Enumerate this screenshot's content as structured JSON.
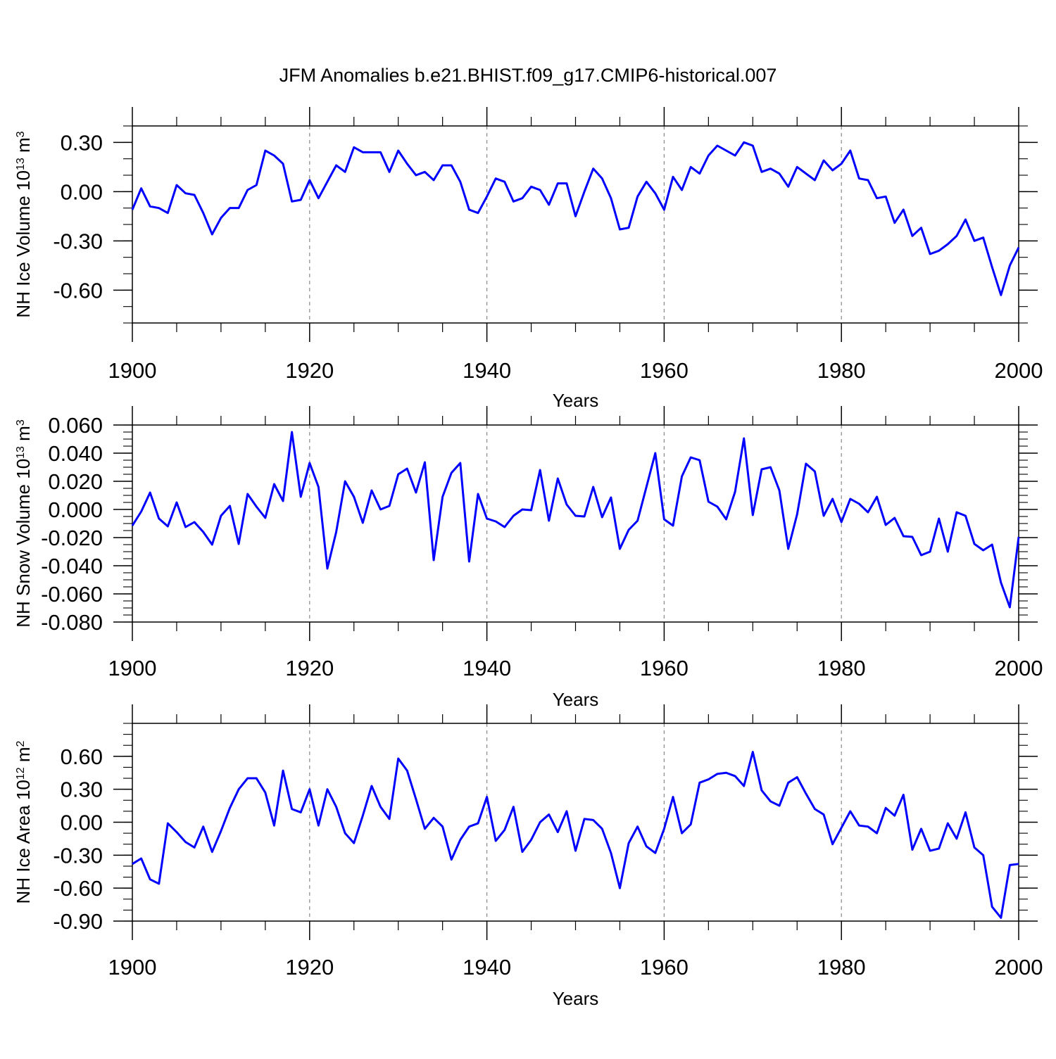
{
  "title": "JFM Anomalies b.e21.BHIST.f09_g17.CMIP6-historical.007",
  "line_color": "#0000ff",
  "grid_color": "#888888",
  "chart_data": [
    {
      "type": "line",
      "name": "ice-volume",
      "ylabel": "NH Ice Volume 10",
      "ylabel_exp": "13",
      "ylabel_unit": " m",
      "ylabel_unit_exp": "3",
      "xlabel": "Years",
      "xlim": [
        1900,
        2000
      ],
      "ylim": [
        -0.8,
        0.4
      ],
      "yticks": [
        0.3,
        0.0,
        -0.3,
        -0.6
      ],
      "yticklabels": [
        "0.30",
        "0.00",
        "-0.30",
        "-0.60"
      ],
      "yminor": 0.1,
      "xticks": [
        1900,
        1920,
        1940,
        1960,
        1980,
        2000
      ],
      "xticklabels": [
        "1900",
        "1920",
        "1940",
        "1960",
        "1980",
        "2000"
      ],
      "x_start": 1900,
      "values": [
        -0.11,
        0.02,
        -0.09,
        -0.1,
        -0.13,
        0.04,
        -0.01,
        -0.02,
        -0.13,
        -0.26,
        -0.16,
        -0.1,
        -0.1,
        0.01,
        0.04,
        0.25,
        0.22,
        0.17,
        -0.06,
        -0.05,
        0.07,
        -0.04,
        0.06,
        0.16,
        0.12,
        0.27,
        0.24,
        0.24,
        0.24,
        0.12,
        0.25,
        0.17,
        0.1,
        0.12,
        0.07,
        0.16,
        0.16,
        0.06,
        -0.11,
        -0.13,
        -0.03,
        0.08,
        0.06,
        -0.06,
        -0.04,
        0.03,
        0.01,
        -0.08,
        0.05,
        0.05,
        -0.15,
        0.0,
        0.14,
        0.08,
        -0.04,
        -0.23,
        -0.22,
        -0.03,
        0.06,
        -0.01,
        -0.11,
        0.09,
        0.01,
        0.15,
        0.11,
        0.22,
        0.28,
        0.25,
        0.22,
        0.3,
        0.28,
        0.12,
        0.14,
        0.11,
        0.03,
        0.15,
        0.11,
        0.07,
        0.19,
        0.13,
        0.17,
        0.25,
        0.08,
        0.07,
        -0.04,
        -0.03,
        -0.19,
        -0.11,
        -0.27,
        -0.22,
        -0.38,
        -0.36,
        -0.32,
        -0.27,
        -0.17,
        -0.3,
        -0.28,
        -0.46,
        -0.63,
        -0.45,
        -0.34
      ]
    },
    {
      "type": "line",
      "name": "snow-volume",
      "ylabel": "NH Snow Volume 10",
      "ylabel_exp": "13",
      "ylabel_unit": " m",
      "ylabel_unit_exp": "3",
      "xlabel": "Years",
      "xlim": [
        1900,
        2000
      ],
      "ylim": [
        -0.08,
        0.06
      ],
      "yticks": [
        0.06,
        0.04,
        0.02,
        0.0,
        -0.02,
        -0.04,
        -0.06,
        -0.08
      ],
      "yticklabels": [
        "0.060",
        "0.040",
        "0.020",
        "0.000",
        "-0.020",
        "-0.040",
        "-0.060",
        "-0.080"
      ],
      "yminor": 0.005,
      "xticks": [
        1900,
        1920,
        1940,
        1960,
        1980,
        2000
      ],
      "xticklabels": [
        "1900",
        "1920",
        "1940",
        "1960",
        "1980",
        "2000"
      ],
      "x_start": 1900,
      "values": [
        -0.0115,
        -0.0015,
        0.012,
        -0.0065,
        -0.012,
        0.005,
        -0.0125,
        -0.009,
        -0.016,
        -0.025,
        -0.0045,
        0.0025,
        -0.0245,
        0.011,
        0.002,
        -0.006,
        0.018,
        0.006,
        0.055,
        0.009,
        0.033,
        0.016,
        -0.042,
        -0.016,
        0.02,
        0.009,
        -0.0095,
        0.0135,
        0.0,
        0.0025,
        0.025,
        0.029,
        0.012,
        0.0335,
        -0.036,
        0.009,
        0.026,
        0.033,
        -0.037,
        0.011,
        -0.0065,
        -0.0085,
        -0.0125,
        -0.0045,
        0.0,
        -0.0005,
        0.028,
        -0.008,
        0.022,
        0.0035,
        -0.0045,
        -0.005,
        0.016,
        -0.0055,
        0.0085,
        -0.028,
        -0.0145,
        -0.008,
        0.016,
        0.04,
        -0.007,
        -0.0115,
        0.0235,
        0.037,
        0.035,
        0.0055,
        0.002,
        -0.007,
        0.0125,
        0.0505,
        -0.004,
        0.0285,
        0.03,
        0.0135,
        -0.028,
        -0.0035,
        0.0325,
        0.027,
        -0.0045,
        0.0075,
        -0.009,
        0.0075,
        0.004,
        -0.002,
        0.009,
        -0.011,
        -0.006,
        -0.019,
        -0.0195,
        -0.0325,
        -0.03,
        -0.0065,
        -0.03,
        -0.002,
        -0.0045,
        -0.0245,
        -0.029,
        -0.025,
        -0.052,
        -0.0695,
        -0.0195
      ]
    },
    {
      "type": "line",
      "name": "ice-area",
      "ylabel": "NH Ice Area 10",
      "ylabel_exp": "12",
      "ylabel_unit": " m",
      "ylabel_unit_exp": "2",
      "xlabel": "Years",
      "xlim": [
        1900,
        2000
      ],
      "ylim": [
        -0.9,
        0.9
      ],
      "yticks": [
        0.6,
        0.3,
        0.0,
        -0.3,
        -0.6,
        -0.9
      ],
      "yticklabels": [
        "0.60",
        "0.30",
        "0.00",
        "-0.30",
        "-0.60",
        "-0.90"
      ],
      "yminor": 0.1,
      "xticks": [
        1900,
        1920,
        1940,
        1960,
        1980,
        2000
      ],
      "xticklabels": [
        "1900",
        "1920",
        "1940",
        "1960",
        "1980",
        "2000"
      ],
      "x_start": 1900,
      "values": [
        -0.38,
        -0.33,
        -0.52,
        -0.56,
        -0.01,
        -0.09,
        -0.18,
        -0.23,
        -0.04,
        -0.27,
        -0.08,
        0.13,
        0.3,
        0.4,
        0.4,
        0.27,
        -0.03,
        0.47,
        0.12,
        0.09,
        0.3,
        -0.03,
        0.3,
        0.14,
        -0.1,
        -0.19,
        0.06,
        0.33,
        0.14,
        0.03,
        0.58,
        0.47,
        0.21,
        -0.06,
        0.04,
        -0.04,
        -0.34,
        -0.16,
        -0.04,
        -0.01,
        0.23,
        -0.17,
        -0.07,
        0.14,
        -0.27,
        -0.16,
        0.0,
        0.07,
        -0.09,
        0.1,
        -0.26,
        0.03,
        0.02,
        -0.06,
        -0.28,
        -0.6,
        -0.19,
        -0.04,
        -0.22,
        -0.28,
        -0.06,
        0.23,
        -0.1,
        -0.02,
        0.36,
        0.39,
        0.44,
        0.45,
        0.42,
        0.33,
        0.64,
        0.29,
        0.19,
        0.15,
        0.36,
        0.41,
        0.26,
        0.12,
        0.07,
        -0.2,
        -0.05,
        0.1,
        -0.03,
        -0.04,
        -0.1,
        0.13,
        0.06,
        0.25,
        -0.25,
        -0.06,
        -0.26,
        -0.24,
        -0.01,
        -0.15,
        0.09,
        -0.23,
        -0.3,
        -0.77,
        -0.87,
        -0.39,
        -0.38
      ]
    }
  ]
}
